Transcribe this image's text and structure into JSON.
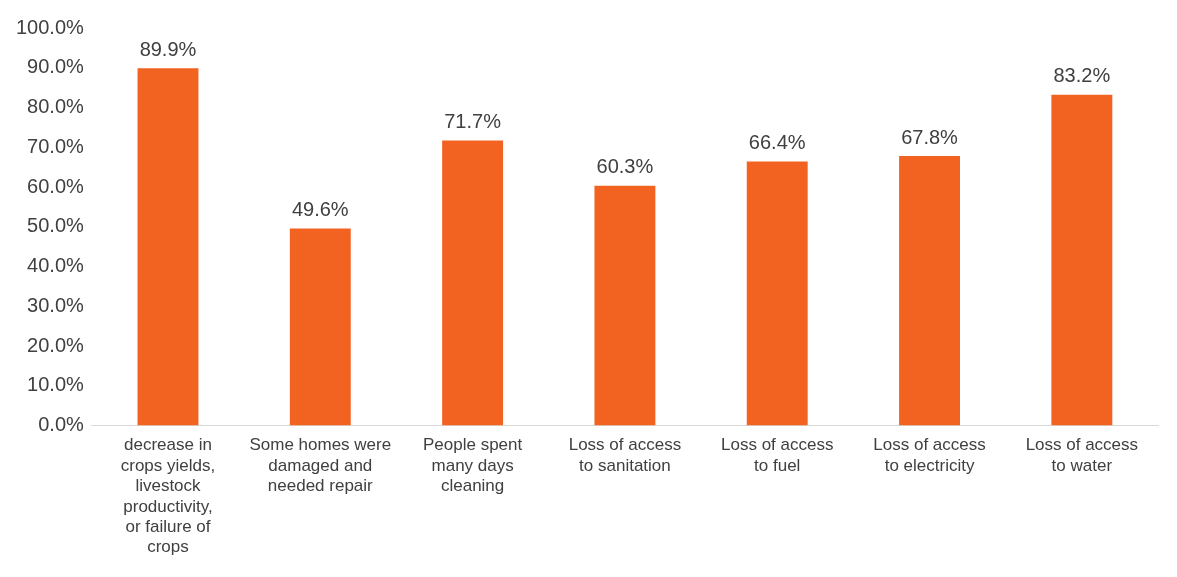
{
  "chart_data": {
    "type": "bar",
    "categories": [
      "decrease in crops yields, livestock productivity, or failure of crops",
      "Some homes were damaged and needed repair",
      "People spent many days cleaning",
      "Loss of access to sanitation",
      "Loss of access to fuel",
      "Loss of access to electricity",
      "Loss of access to water"
    ],
    "values": [
      89.9,
      49.6,
      71.7,
      60.3,
      66.4,
      67.8,
      83.2
    ],
    "value_labels": [
      "89.9%",
      "49.6%",
      "71.7%",
      "60.3%",
      "66.4%",
      "67.8%",
      "83.2%"
    ],
    "color": "#f26322",
    "ylim": [
      0,
      100
    ],
    "yticks": [
      {
        "value": 0,
        "label": "0.0%"
      },
      {
        "value": 10,
        "label": "10.0%"
      },
      {
        "value": 20,
        "label": "20.0%"
      },
      {
        "value": 30,
        "label": "30.0%"
      },
      {
        "value": 40,
        "label": "40.0%"
      },
      {
        "value": 50,
        "label": "50.0%"
      },
      {
        "value": 60,
        "label": "60.0%"
      },
      {
        "value": 70,
        "label": "70.0%"
      },
      {
        "value": 80,
        "label": "80.0%"
      },
      {
        "value": 90,
        "label": "90.0%"
      },
      {
        "value": 100,
        "label": "100.0%"
      }
    ],
    "grid": false,
    "legend": false
  }
}
